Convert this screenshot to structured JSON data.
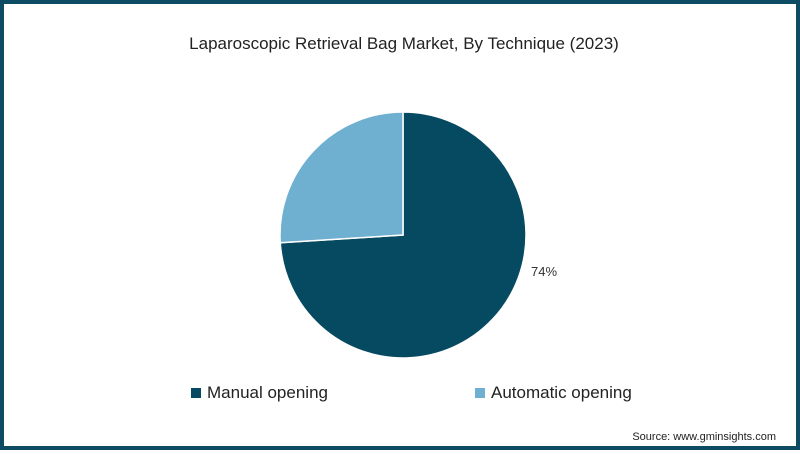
{
  "chart_data": {
    "type": "pie",
    "title": "Laparoscopic Retrieval Bag Market, By Technique (2023)",
    "categories": [
      "Manual opening",
      "Automatic opening"
    ],
    "values": [
      74,
      26
    ],
    "colors": [
      "#064a62",
      "#6fafd0"
    ],
    "data_labels": [
      "74%",
      ""
    ],
    "legend_position": "bottom",
    "start_angle": "12 o'clock, Manual opening clockwise",
    "source": "Source: www.gminsights.com"
  },
  "title": "Laparoscopic Retrieval Bag Market, By Technique (2023)",
  "label_manual": "74%",
  "legend": {
    "manual": "Manual opening",
    "automatic": "Automatic opening"
  },
  "source": "Source: www.gminsights.com",
  "colors": {
    "border": "#0d4a63",
    "manual": "#064a62",
    "automatic": "#6fafd0"
  }
}
